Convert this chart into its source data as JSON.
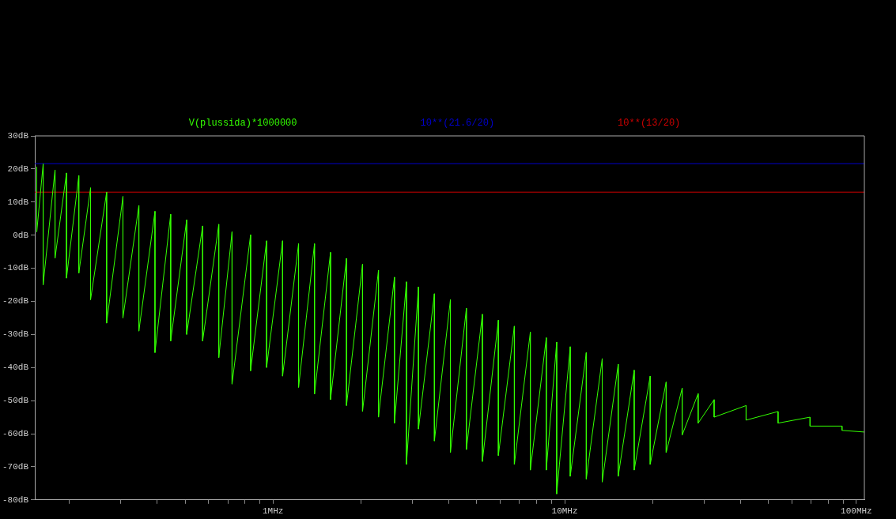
{
  "chart_data": {
    "type": "line",
    "log": "x",
    "grid": false,
    "legend": "top",
    "marker": "none",
    "line_style": "solid",
    "xlim": [
      0.1526,
      106.5
    ],
    "xticks": [
      {
        "value": 0.2,
        "label": null
      },
      {
        "value": 0.3,
        "label": null
      },
      {
        "value": 0.4,
        "label": null
      },
      {
        "value": 0.5,
        "label": null
      },
      {
        "value": 0.6,
        "label": null
      },
      {
        "value": 0.7,
        "label": null
      },
      {
        "value": 0.8,
        "label": null
      },
      {
        "value": 0.9,
        "label": null
      },
      {
        "value": 1,
        "label": "1MHz"
      },
      {
        "value": 2,
        "label": null
      },
      {
        "value": 3,
        "label": null
      },
      {
        "value": 4,
        "label": null
      },
      {
        "value": 5,
        "label": null
      },
      {
        "value": 6,
        "label": null
      },
      {
        "value": 7,
        "label": null
      },
      {
        "value": 8,
        "label": null
      },
      {
        "value": 9,
        "label": null
      },
      {
        "value": 10,
        "label": "10MHz"
      },
      {
        "value": 20,
        "label": null
      },
      {
        "value": 30,
        "label": null
      },
      {
        "value": 40,
        "label": null
      },
      {
        "value": 50,
        "label": null
      },
      {
        "value": 60,
        "label": null
      },
      {
        "value": 70,
        "label": null
      },
      {
        "value": 80,
        "label": null
      },
      {
        "value": 90,
        "label": null
      },
      {
        "value": 100,
        "label": "100MHz"
      }
    ],
    "ylim": [
      -80,
      30
    ],
    "yticks": [
      {
        "value": -80,
        "label": "-80dB"
      },
      {
        "value": -70,
        "label": "-70dB"
      },
      {
        "value": -60,
        "label": "-60dB"
      },
      {
        "value": -50,
        "label": "-50dB"
      },
      {
        "value": -40,
        "label": "-40dB"
      },
      {
        "value": -30,
        "label": "-30dB"
      },
      {
        "value": -20,
        "label": "-20dB"
      },
      {
        "value": -10,
        "label": "-10dB"
      },
      {
        "value": 0,
        "label": "0dB"
      },
      {
        "value": 10,
        "label": "10dB"
      },
      {
        "value": 20,
        "label": "20dB"
      },
      {
        "value": 30,
        "label": "30dB"
      }
    ],
    "series": [
      {
        "name": "V(plussida)*1000000",
        "color": "#33ff00",
        "x": [
          0.155,
          0.155,
          0.163,
          0.163,
          0.179,
          0.179,
          0.196,
          0.196,
          0.216,
          0.216,
          0.237,
          0.237,
          0.269,
          0.269,
          0.306,
          0.306,
          0.347,
          0.347,
          0.394,
          0.394,
          0.446,
          0.446,
          0.506,
          0.506,
          0.574,
          0.574,
          0.652,
          0.652,
          0.724,
          0.724,
          0.838,
          0.838,
          0.951,
          0.951,
          1.079,
          1.079,
          1.224,
          1.224,
          1.388,
          1.388,
          1.575,
          1.575,
          1.787,
          1.787,
          2.028,
          2.028,
          2.3,
          2.3,
          2.609,
          2.609,
          2.868,
          2.868,
          3.154,
          3.154,
          3.576,
          3.576,
          4.058,
          4.058,
          4.603,
          4.603,
          5.223,
          5.223,
          5.925,
          5.925,
          6.722,
          6.722,
          7.626,
          7.626,
          8.65,
          8.65,
          9.389,
          9.389,
          10.45,
          10.45,
          11.86,
          11.86,
          13.45,
          13.45,
          15.26,
          15.26,
          17.31,
          17.31,
          19.64,
          19.64,
          22.28,
          22.28,
          25.28,
          25.28,
          28.68,
          28.68,
          32.53,
          32.53,
          41.87,
          41.87,
          53.89,
          53.89,
          69.36,
          69.36,
          89.27,
          89.27,
          106.5
        ],
        "values": [
          20.6,
          1,
          21.5,
          -15,
          19.7,
          -7,
          18.8,
          -13,
          18,
          -11.5,
          14.3,
          -19.5,
          13,
          -26.6,
          11.7,
          -25,
          9,
          -29,
          7.2,
          -35.5,
          6.3,
          -32,
          4.6,
          -30,
          2.8,
          -32,
          3.3,
          -37,
          1,
          -45,
          0.1,
          -41,
          -1.7,
          -40,
          -1.7,
          -42.6,
          -2.6,
          -46,
          -2.6,
          -48,
          -5.2,
          -49.7,
          -7,
          -51.5,
          -8.8,
          -53.3,
          -10.6,
          -55,
          -12.7,
          -56.8,
          -14.1,
          -69.3,
          -15.6,
          -58.6,
          -17.7,
          -62.2,
          -19.5,
          -65.7,
          -22.1,
          -64.8,
          -23.9,
          -68.4,
          -25.7,
          -66.6,
          -27.5,
          -69.3,
          -29.3,
          -71,
          -31,
          -71,
          -32.3,
          -78.2,
          -33.7,
          -72.9,
          -35.5,
          -73.7,
          -37.3,
          -74.6,
          -39,
          -72.9,
          -40.8,
          -71,
          -42.6,
          -69.3,
          -44.4,
          -65.7,
          -46.2,
          -60.4,
          -47.9,
          -56.8,
          -49.7,
          -55,
          -51.5,
          -55.9,
          -53.3,
          -56.8,
          -55,
          -57.7,
          -57.7,
          -59,
          -59.5
        ]
      },
      {
        "name": "10**(21.6/20)",
        "color": "#0000cc",
        "x": [
          0.1526,
          106.5
        ],
        "values": [
          21.6,
          21.6
        ]
      },
      {
        "name": "10**(13/20)",
        "color": "#cc0000",
        "x": [
          0.1526,
          106.5
        ],
        "values": [
          13,
          13
        ]
      }
    ]
  }
}
